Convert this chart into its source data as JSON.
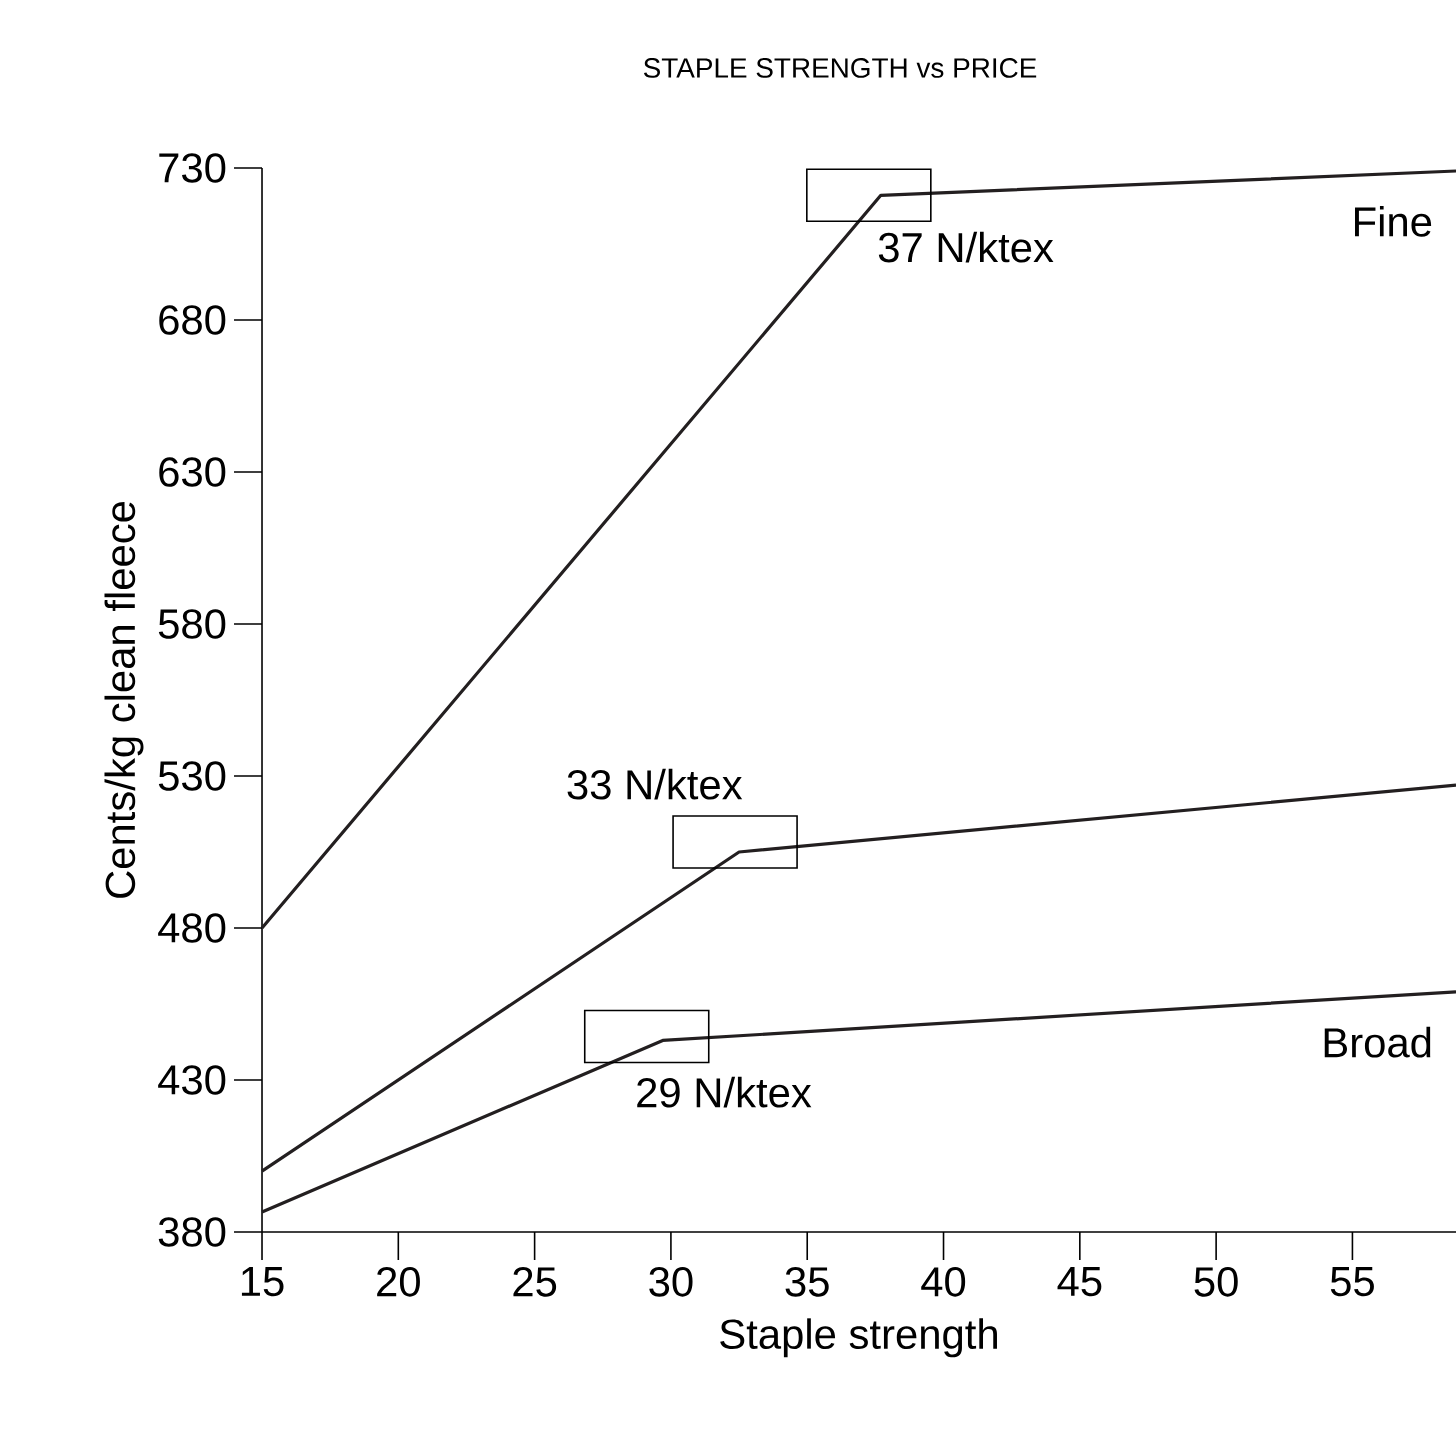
{
  "chart_data": {
    "type": "line",
    "title": "STAPLE STRENGTH vs PRICE",
    "xlabel": "Staple strength",
    "ylabel": "Cents/kg clean fleece",
    "series": [
      {
        "name": "Fine",
        "color": "#231f20",
        "x": [
          15,
          37.7,
          58.8
        ],
        "values": [
          480,
          721,
          729
        ]
      },
      {
        "color": "#231f20",
        "x": [
          15,
          32.5,
          58.8
        ],
        "values": [
          400,
          505,
          527
        ]
      },
      {
        "name": "Broad",
        "color": "#231f20",
        "x": [
          15,
          29.7,
          58.8
        ],
        "values": [
          386.6,
          443,
          459
        ]
      }
    ],
    "annotations": [
      {
        "text": "37 N/ktex",
        "x": 37.7,
        "y": 721
      },
      {
        "text": "33 N/ktex",
        "x": 32.5,
        "y": 505
      },
      {
        "text": "29 N/ktex",
        "x": 29.7,
        "y": 443
      }
    ],
    "xlim": [
      15,
      58.8
    ],
    "ylim": [
      380,
      730
    ],
    "xticks": [
      15,
      20,
      25,
      30,
      35,
      40,
      45,
      50,
      55
    ],
    "yticks": [
      380,
      430,
      480,
      530,
      580,
      630,
      680,
      730
    ],
    "grid": false,
    "legend": false,
    "marker": "none",
    "line_style": "solid"
  }
}
